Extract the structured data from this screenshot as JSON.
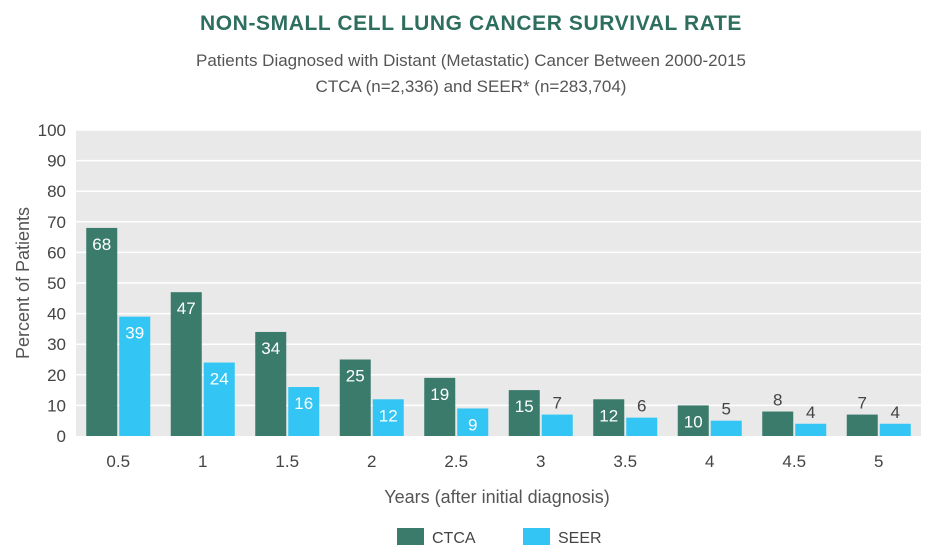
{
  "chart_data": {
    "type": "bar",
    "title": "NON-SMALL CELL LUNG CANCER SURVIVAL RATE",
    "subtitle_lines": [
      "Patients Diagnosed with Distant (Metastatic) Cancer Between 2000-2015",
      "CTCA (n=2,336) and SEER* (n=283,704)"
    ],
    "xlabel": "Years (after initial diagnosis)",
    "ylabel": "Percent of Patients",
    "ylim": [
      0,
      100
    ],
    "yticks": [
      0,
      10,
      20,
      30,
      40,
      50,
      60,
      70,
      80,
      90,
      100
    ],
    "categories": [
      "0.5",
      "1",
      "1.5",
      "2",
      "2.5",
      "3",
      "3.5",
      "4",
      "4.5",
      "5"
    ],
    "series": [
      {
        "name": "CTCA",
        "color": "#3a7b6b",
        "values": [
          68,
          47,
          34,
          25,
          19,
          15,
          12,
          10,
          8,
          7
        ]
      },
      {
        "name": "SEER",
        "color": "#33c5f3",
        "values": [
          39,
          24,
          16,
          12,
          9,
          7,
          6,
          5,
          4,
          4
        ]
      }
    ],
    "grid": true,
    "legend_position": "bottom-center",
    "plot_background": "#e9e9e9"
  }
}
